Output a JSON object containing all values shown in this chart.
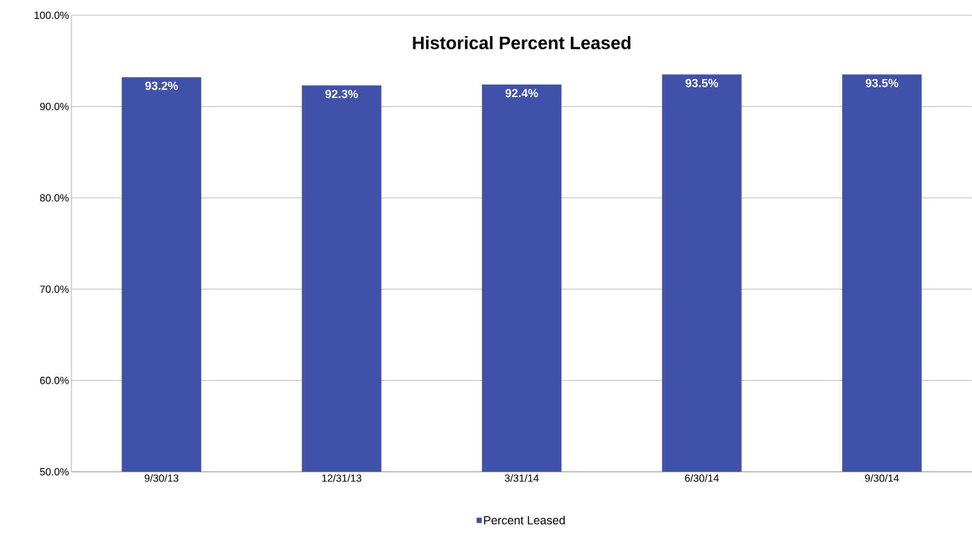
{
  "chart_data": {
    "type": "bar",
    "title": "Historical Percent Leased",
    "categories": [
      "9/30/13",
      "12/31/13",
      "3/31/14",
      "6/30/14",
      "9/30/14"
    ],
    "series": [
      {
        "name": "Percent Leased",
        "color": "#3f51a8",
        "values": [
          93.2,
          92.3,
          92.4,
          93.5,
          93.5
        ],
        "value_labels": [
          "93.2%",
          "92.3%",
          "92.4%",
          "93.5%",
          "93.5%"
        ]
      }
    ],
    "ylim": [
      50,
      100
    ],
    "yticks": [
      {
        "value": 50,
        "label": "50.0%"
      },
      {
        "value": 60,
        "label": "60.0%"
      },
      {
        "value": 70,
        "label": "70.0%"
      },
      {
        "value": 80,
        "label": "80.0%"
      },
      {
        "value": 90,
        "label": "90.0%"
      },
      {
        "value": 100,
        "label": "100.0%"
      }
    ],
    "grid": "y",
    "legend": "bottom"
  }
}
